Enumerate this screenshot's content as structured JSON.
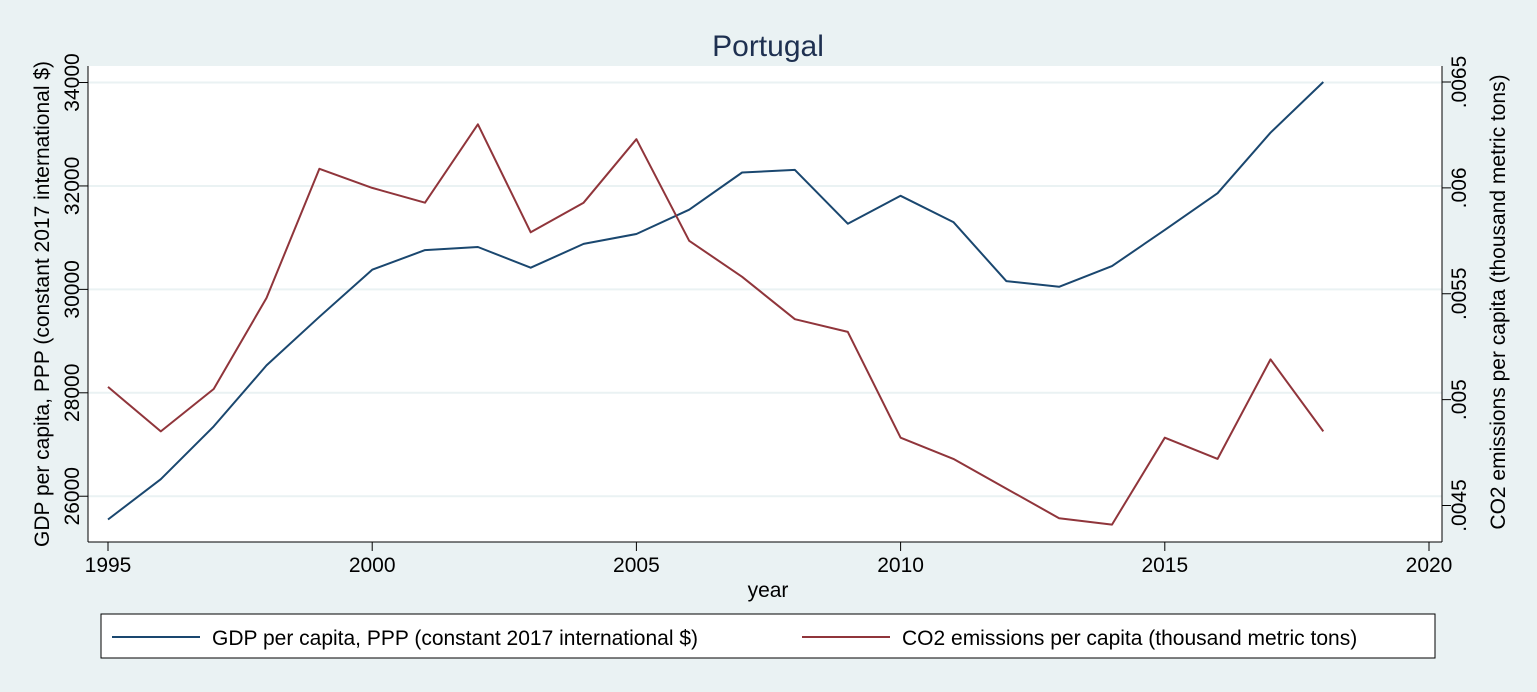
{
  "chart_data": {
    "type": "line",
    "title": "Portugal",
    "xlabel": "year",
    "ylabel_left": "GDP per capita, PPP (constant 2017 international $)",
    "ylabel_right": "CO2 emissions per capita (thousand metric tons)",
    "xlim": [
      1995,
      2020
    ],
    "ylim_left": [
      25550,
      34000
    ],
    "ylim_right": [
      0.0044,
      0.0065
    ],
    "x_ticks": [
      1995,
      2000,
      2005,
      2010,
      2015,
      2020
    ],
    "y_ticks_left": [
      26000,
      28000,
      30000,
      32000,
      34000
    ],
    "y_tick_labels_left": [
      "26000",
      "28000",
      "30000",
      "32000",
      "34000"
    ],
    "y_ticks_right": [
      0.0045,
      0.005,
      0.0055,
      0.006,
      0.0065
    ],
    "y_tick_labels_right": [
      ".0045",
      ".005",
      ".0055",
      ".006",
      ".0065"
    ],
    "grid": true,
    "legend_position": "bottom",
    "x": [
      1995,
      1996,
      1997,
      1998,
      1999,
      2000,
      2001,
      2002,
      2003,
      2004,
      2005,
      2006,
      2007,
      2008,
      2009,
      2010,
      2011,
      2012,
      2013,
      2014,
      2015,
      2016,
      2017,
      2018
    ],
    "series": [
      {
        "name": "GDP per capita, PPP (constant 2017 international $)",
        "axis": "left",
        "color": "#1a476f",
        "values": [
          25550,
          26330,
          27350,
          28530,
          29470,
          30380,
          30760,
          30820,
          30420,
          30880,
          31070,
          31540,
          32260,
          32310,
          31270,
          31810,
          31300,
          30160,
          30050,
          30450,
          31150,
          31860,
          33030,
          34010
        ]
      },
      {
        "name": "CO2 emissions per capita (thousand metric tons)",
        "axis": "right",
        "color": "#90353b",
        "values": [
          0.00506,
          0.00485,
          0.00505,
          0.00548,
          0.00609,
          0.006,
          0.00593,
          0.0063,
          0.00579,
          0.00593,
          0.00623,
          0.00575,
          0.00558,
          0.00538,
          0.00532,
          0.00482,
          0.00472,
          0.00458,
          0.00444,
          0.00441,
          0.00482,
          0.00472,
          0.00519,
          0.00485
        ]
      }
    ]
  }
}
